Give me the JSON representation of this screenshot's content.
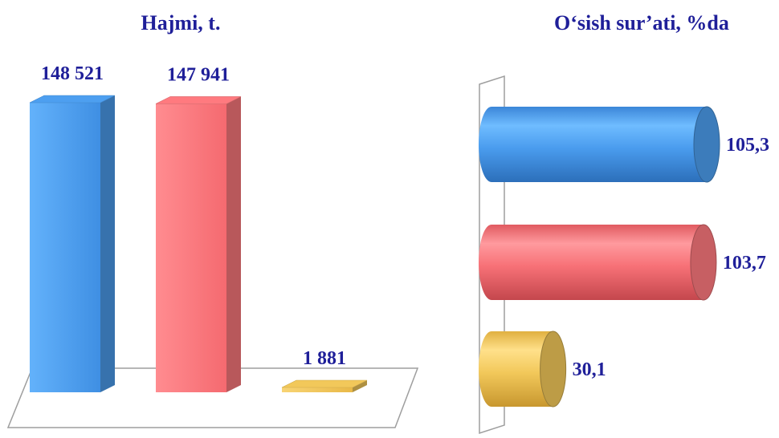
{
  "chart_data": [
    {
      "type": "bar",
      "title": "Hajmi, t.",
      "categories": [
        "",
        "",
        ""
      ],
      "values": [
        148521,
        147941,
        1881
      ],
      "value_labels": [
        "148 521",
        "147 941",
        "1 881"
      ],
      "colors": [
        "#4d9ff0",
        "#ff7a7f",
        "#f2c85a"
      ],
      "ylim": [
        0,
        150000
      ],
      "grid": false,
      "legend": "none"
    },
    {
      "type": "bar",
      "orientation": "horizontal",
      "title": "O‘sish sur’ati, %da",
      "categories": [
        "",
        "",
        ""
      ],
      "values": [
        105.3,
        103.7,
        30.1
      ],
      "value_labels": [
        "105,3",
        "103,7",
        "30,1"
      ],
      "colors": [
        "#4d9ff0",
        "#ff7a7f",
        "#f2c85a"
      ],
      "xlim": [
        0,
        106
      ],
      "grid": false,
      "legend": "none"
    }
  ]
}
